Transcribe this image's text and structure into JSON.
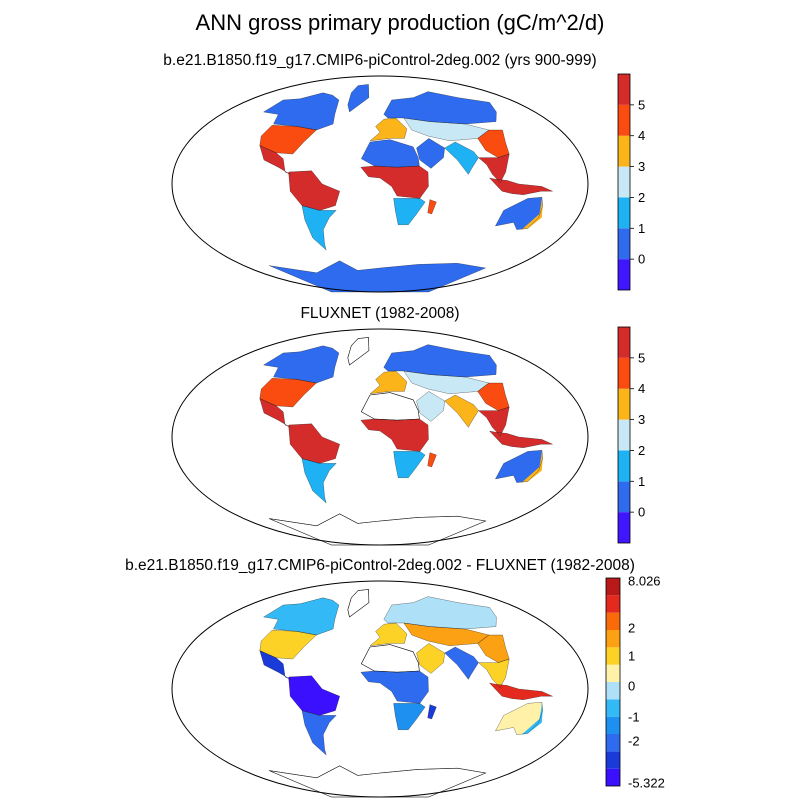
{
  "title": "ANN gross primary production (gC/m^2/d)",
  "panels": [
    {
      "title": "b.e21.B1850.f19_g17.CMIP6-piControl-2deg.002 (yrs 900-999)",
      "colorbar": {
        "colors": [
          "#4016ff",
          "#2e6bef",
          "#1eb2f5",
          "#c8e8f6",
          "#fbb41a",
          "#fa4b10",
          "#d42b2b"
        ],
        "tick_labels": [
          "0",
          "1",
          "2",
          "3",
          "4",
          "5"
        ]
      },
      "regions": {
        "antarctica": "#2e6bef",
        "greenland": "#2e6bef",
        "boreal_na": "#2e6bef",
        "east_us": "#fa4b10",
        "central_am": "#d42b2b",
        "amazon": "#d42b2b",
        "south_sa": "#1eb2f5",
        "west_eu": "#fbb41a",
        "boreal_eur": "#2e6bef",
        "central_asia": "#c8e8f6",
        "sahara": "#2e6bef",
        "central_af": "#d42b2b",
        "south_af": "#1eb2f5",
        "middle_east": "#2e6bef",
        "india": "#1eb2f5",
        "se_asia": "#d42b2b",
        "indonesia": "#d42b2b",
        "east_china": "#fa4b10",
        "australia": "#2e6bef",
        "east_aus": "#fbb41a",
        "madagascar": "#fa4b10"
      }
    },
    {
      "title": "FLUXNET (1982-2008)",
      "colorbar": {
        "colors": [
          "#4016ff",
          "#2e6bef",
          "#1eb2f5",
          "#c8e8f6",
          "#fbb41a",
          "#fa4b10",
          "#d42b2b"
        ],
        "tick_labels": [
          "0",
          "1",
          "2",
          "3",
          "4",
          "5"
        ]
      },
      "regions": {
        "antarctica": "#ffffff",
        "greenland": "#ffffff",
        "boreal_na": "#2e6bef",
        "east_us": "#fa4b10",
        "central_am": "#d42b2b",
        "amazon": "#d42b2b",
        "south_sa": "#1eb2f5",
        "west_eu": "#fbb41a",
        "boreal_eur": "#2e6bef",
        "central_asia": "#c8e8f6",
        "sahara": "#ffffff",
        "central_af": "#d42b2b",
        "south_af": "#1eb2f5",
        "middle_east": "#c8e8f6",
        "india": "#fbb41a",
        "se_asia": "#d42b2b",
        "indonesia": "#d42b2b",
        "east_china": "#fa4b10",
        "australia": "#2e6bef",
        "east_aus": "#fbb41a",
        "madagascar": "#fa4b10"
      }
    },
    {
      "title": "b.e21.B1850.f19_g17.CMIP6-piControl-2deg.002 - FLUXNET (1982-2008)",
      "colorbar": {
        "colors": [
          "#3a10ff",
          "#1a3bd8",
          "#2e6bef",
          "#1e90f0",
          "#33b9f5",
          "#aee0f7",
          "#fff2a8",
          "#fcd227",
          "#fba113",
          "#f86a0a",
          "#e42a1e",
          "#b81a1a"
        ],
        "tick_labels": [
          "-5.322",
          "-2",
          "-1",
          "0",
          "1",
          "2",
          "8.026"
        ]
      },
      "regions": {
        "antarctica": "#ffffff",
        "greenland": "#ffffff",
        "boreal_na": "#33b9f5",
        "east_us": "#fcd227",
        "central_am": "#1a3bd8",
        "amazon": "#3a10ff",
        "south_sa": "#2e6bef",
        "west_eu": "#fcd227",
        "boreal_eur": "#aee0f7",
        "central_asia": "#fba113",
        "sahara": "#ffffff",
        "central_af": "#2e6bef",
        "south_af": "#1e90f0",
        "middle_east": "#fcd227",
        "india": "#2e6bef",
        "se_asia": "#fcd227",
        "indonesia": "#e42a1e",
        "east_china": "#fba113",
        "australia": "#fff2a8",
        "east_aus": "#33b9f5",
        "madagascar": "#1a3bd8"
      }
    }
  ]
}
